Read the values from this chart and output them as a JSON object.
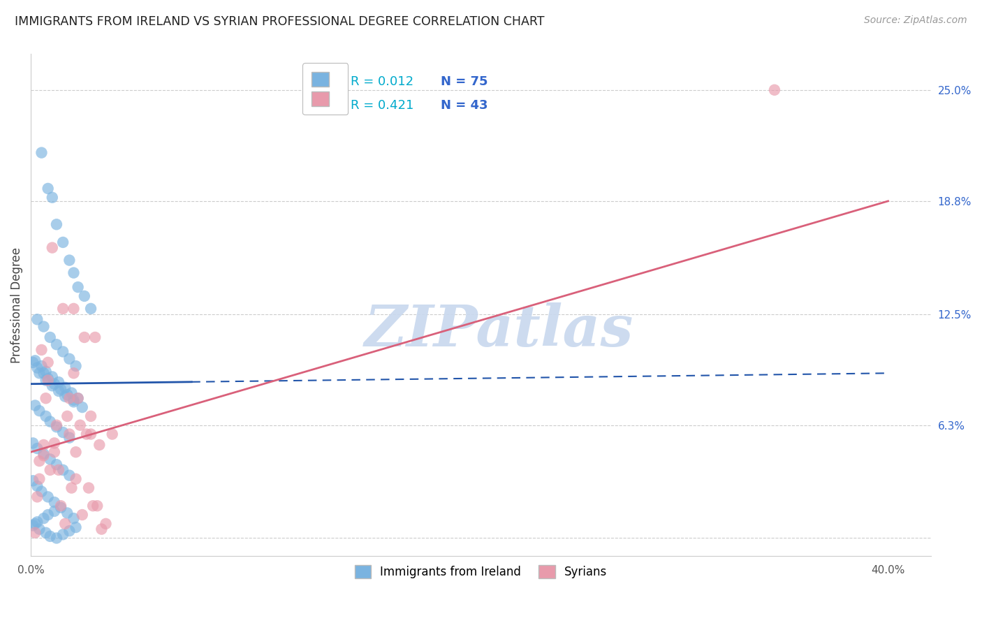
{
  "title": "IMMIGRANTS FROM IRELAND VS SYRIAN PROFESSIONAL DEGREE CORRELATION CHART",
  "source": "Source: ZipAtlas.com",
  "ylabel": "Professional Degree",
  "yticks": [
    0.0,
    0.063,
    0.125,
    0.188,
    0.25
  ],
  "ytick_labels": [
    "",
    "6.3%",
    "12.5%",
    "18.8%",
    "25.0%"
  ],
  "xlim": [
    0.0,
    0.42
  ],
  "ylim": [
    -0.01,
    0.27
  ],
  "legend_r1": "R = 0.012",
  "legend_n1": "N = 75",
  "legend_r2": "R = 0.421",
  "legend_n2": "N = 43",
  "legend_label1": "Immigrants from Ireland",
  "legend_label2": "Syrians",
  "blue_color": "#7ab3e0",
  "pink_color": "#e89aab",
  "blue_line_color": "#2255aa",
  "pink_line_color": "#d9607a",
  "r_color": "#00aacc",
  "n_color": "#3366cc",
  "watermark_color": "#c8d8ee",
  "watermark": "ZIPatlas",
  "blue_line_y0": 0.086,
  "blue_line_y1": 0.092,
  "blue_line_x_solid_end": 0.075,
  "pink_line_y0": 0.048,
  "pink_line_y1": 0.188,
  "pink_line_x0": 0.0,
  "pink_line_x1": 0.4,
  "blue_scatter_x": [
    0.005,
    0.008,
    0.01,
    0.012,
    0.015,
    0.018,
    0.02,
    0.022,
    0.025,
    0.028,
    0.003,
    0.006,
    0.009,
    0.012,
    0.015,
    0.018,
    0.021,
    0.004,
    0.007,
    0.01,
    0.013,
    0.016,
    0.02,
    0.024,
    0.002,
    0.005,
    0.007,
    0.01,
    0.013,
    0.016,
    0.019,
    0.022,
    0.001,
    0.003,
    0.006,
    0.008,
    0.011,
    0.014,
    0.017,
    0.02,
    0.002,
    0.004,
    0.007,
    0.009,
    0.012,
    0.015,
    0.018,
    0.001,
    0.003,
    0.006,
    0.009,
    0.012,
    0.015,
    0.018,
    0.001,
    0.003,
    0.005,
    0.008,
    0.011,
    0.014,
    0.017,
    0.02,
    0.002,
    0.004,
    0.007,
    0.009,
    0.012,
    0.015,
    0.018,
    0.021,
    0.001,
    0.003,
    0.006,
    0.008,
    0.011
  ],
  "blue_scatter_y": [
    0.215,
    0.195,
    0.19,
    0.175,
    0.165,
    0.155,
    0.148,
    0.14,
    0.135,
    0.128,
    0.122,
    0.118,
    0.112,
    0.108,
    0.104,
    0.1,
    0.096,
    0.092,
    0.088,
    0.085,
    0.082,
    0.079,
    0.076,
    0.073,
    0.099,
    0.096,
    0.093,
    0.09,
    0.087,
    0.084,
    0.081,
    0.078,
    0.098,
    0.095,
    0.092,
    0.089,
    0.086,
    0.083,
    0.08,
    0.077,
    0.074,
    0.071,
    0.068,
    0.065,
    0.062,
    0.059,
    0.056,
    0.053,
    0.05,
    0.047,
    0.044,
    0.041,
    0.038,
    0.035,
    0.032,
    0.029,
    0.026,
    0.023,
    0.02,
    0.017,
    0.014,
    0.011,
    0.008,
    0.005,
    0.003,
    0.001,
    0.0,
    0.002,
    0.004,
    0.006,
    0.007,
    0.009,
    0.011,
    0.013,
    0.015
  ],
  "pink_scatter_x": [
    0.01,
    0.015,
    0.005,
    0.02,
    0.008,
    0.025,
    0.03,
    0.022,
    0.012,
    0.018,
    0.006,
    0.011,
    0.023,
    0.028,
    0.032,
    0.004,
    0.013,
    0.021,
    0.027,
    0.003,
    0.014,
    0.024,
    0.016,
    0.007,
    0.017,
    0.026,
    0.009,
    0.019,
    0.029,
    0.035,
    0.008,
    0.018,
    0.028,
    0.038,
    0.011,
    0.021,
    0.031,
    0.002,
    0.02,
    0.347,
    0.004,
    0.006,
    0.033
  ],
  "pink_scatter_y": [
    0.162,
    0.128,
    0.105,
    0.128,
    0.098,
    0.112,
    0.112,
    0.078,
    0.063,
    0.058,
    0.052,
    0.048,
    0.063,
    0.058,
    0.052,
    0.043,
    0.038,
    0.033,
    0.028,
    0.023,
    0.018,
    0.013,
    0.008,
    0.078,
    0.068,
    0.058,
    0.038,
    0.028,
    0.018,
    0.008,
    0.088,
    0.078,
    0.068,
    0.058,
    0.053,
    0.048,
    0.018,
    0.003,
    0.092,
    0.25,
    0.033,
    0.046,
    0.005
  ]
}
